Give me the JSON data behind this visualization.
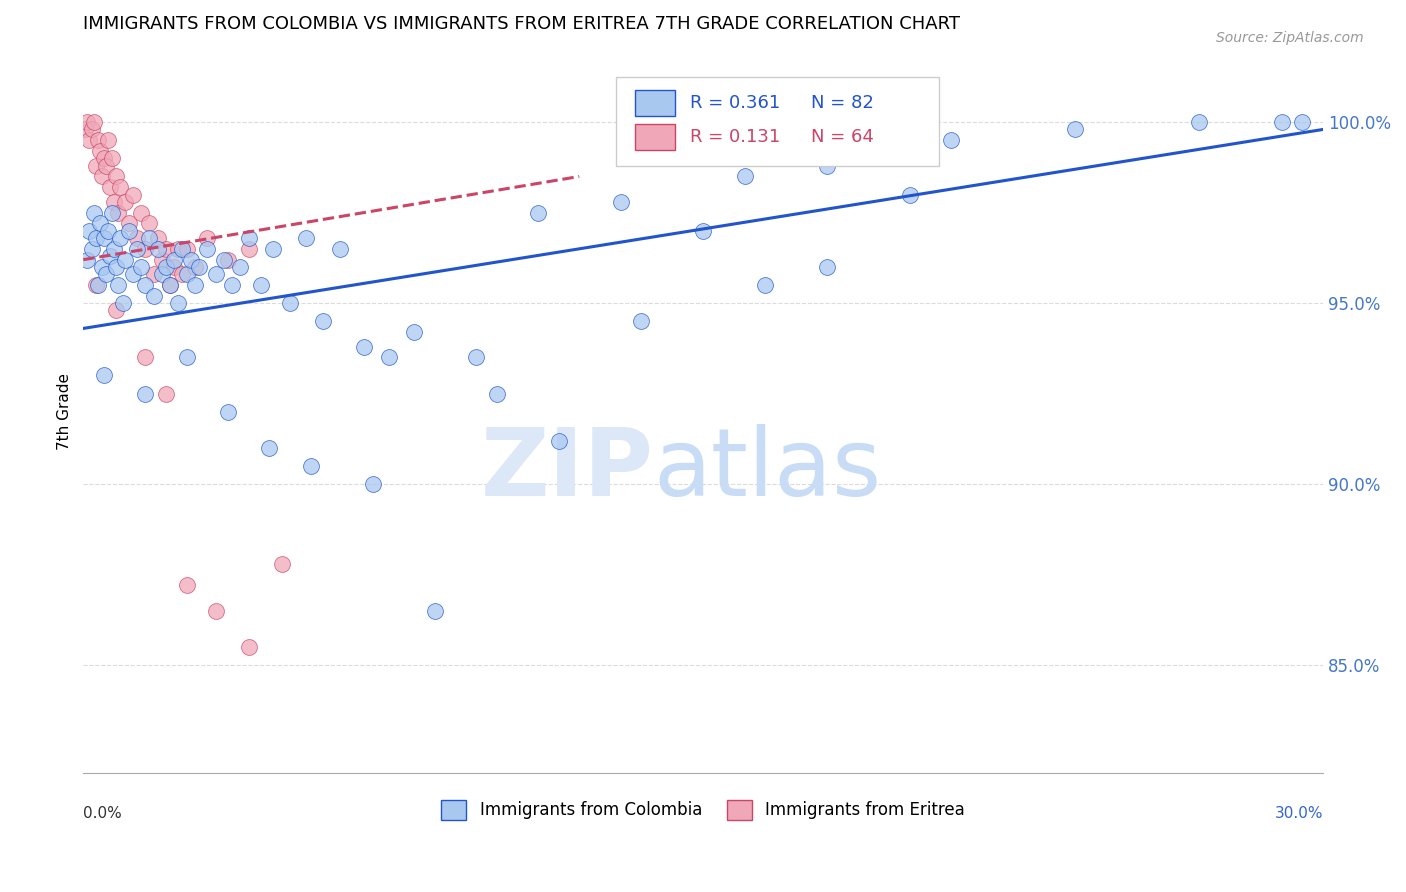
{
  "title": "IMMIGRANTS FROM COLOMBIA VS IMMIGRANTS FROM ERITREA 7TH GRADE CORRELATION CHART",
  "source": "Source: ZipAtlas.com",
  "ylabel": "7th Grade",
  "y_ticks": [
    85.0,
    90.0,
    95.0,
    100.0
  ],
  "y_tick_labels": [
    "85.0%",
    "90.0%",
    "95.0%",
    "100.0%"
  ],
  "xlim": [
    0.0,
    30.0
  ],
  "ylim": [
    82.0,
    102.0
  ],
  "legend_blue_r": "R = 0.361",
  "legend_blue_n": "N = 82",
  "legend_pink_r": "R = 0.131",
  "legend_pink_n": "N = 64",
  "series_colombia_label": "Immigrants from Colombia",
  "series_eritrea_label": "Immigrants from Eritrea",
  "color_blue": "#A8C8F0",
  "color_pink": "#F0A8B8",
  "color_blue_line": "#2255CC",
  "color_pink_line": "#CC4466",
  "colombia_x": [
    0.1,
    0.15,
    0.2,
    0.25,
    0.3,
    0.35,
    0.4,
    0.45,
    0.5,
    0.55,
    0.6,
    0.65,
    0.7,
    0.75,
    0.8,
    0.85,
    0.9,
    0.95,
    1.0,
    1.1,
    1.2,
    1.3,
    1.4,
    1.5,
    1.6,
    1.7,
    1.8,
    1.9,
    2.0,
    2.1,
    2.2,
    2.3,
    2.4,
    2.5,
    2.6,
    2.7,
    2.8,
    3.0,
    3.2,
    3.4,
    3.6,
    3.8,
    4.0,
    4.3,
    4.6,
    5.0,
    5.4,
    5.8,
    6.2,
    6.8,
    7.4,
    8.0,
    9.5,
    11.0,
    13.0,
    16.0,
    18.0,
    21.0,
    24.0,
    27.0,
    29.0,
    29.5
  ],
  "colombia_y": [
    96.2,
    97.0,
    96.5,
    97.5,
    96.8,
    95.5,
    97.2,
    96.0,
    96.8,
    95.8,
    97.0,
    96.3,
    97.5,
    96.5,
    96.0,
    95.5,
    96.8,
    95.0,
    96.2,
    97.0,
    95.8,
    96.5,
    96.0,
    95.5,
    96.8,
    95.2,
    96.5,
    95.8,
    96.0,
    95.5,
    96.2,
    95.0,
    96.5,
    95.8,
    96.2,
    95.5,
    96.0,
    96.5,
    95.8,
    96.2,
    95.5,
    96.0,
    96.8,
    95.5,
    96.5,
    95.0,
    96.8,
    94.5,
    96.5,
    93.8,
    93.5,
    94.2,
    93.5,
    97.5,
    97.8,
    98.5,
    98.8,
    99.5,
    99.8,
    100.0,
    100.0,
    100.0
  ],
  "colombia_outliers_x": [
    0.5,
    1.5,
    2.5,
    3.5,
    4.5,
    5.5,
    7.0,
    8.5,
    10.0,
    11.5,
    13.5,
    15.0,
    16.5,
    18.0,
    20.0
  ],
  "colombia_outliers_y": [
    93.0,
    92.5,
    93.5,
    92.0,
    91.0,
    90.5,
    90.0,
    86.5,
    92.5,
    91.2,
    94.5,
    97.0,
    95.5,
    96.0,
    98.0
  ],
  "eritrea_x": [
    0.05,
    0.1,
    0.15,
    0.2,
    0.25,
    0.3,
    0.35,
    0.4,
    0.45,
    0.5,
    0.55,
    0.6,
    0.65,
    0.7,
    0.75,
    0.8,
    0.85,
    0.9,
    1.0,
    1.1,
    1.2,
    1.3,
    1.4,
    1.5,
    1.6,
    1.7,
    1.8,
    1.9,
    2.0,
    2.1,
    2.2,
    2.3,
    2.4,
    2.5,
    2.7,
    3.0,
    3.5,
    4.0
  ],
  "eritrea_y": [
    99.8,
    100.0,
    99.5,
    99.8,
    100.0,
    98.8,
    99.5,
    99.2,
    98.5,
    99.0,
    98.8,
    99.5,
    98.2,
    99.0,
    97.8,
    98.5,
    97.5,
    98.2,
    97.8,
    97.2,
    98.0,
    96.8,
    97.5,
    96.5,
    97.2,
    95.8,
    96.8,
    96.2,
    96.5,
    95.5,
    96.0,
    96.5,
    95.8,
    96.5,
    96.0,
    96.8,
    96.2,
    96.5
  ],
  "eritrea_outliers_x": [
    0.3,
    0.8,
    1.5,
    2.0,
    2.5,
    3.2,
    4.0,
    4.8
  ],
  "eritrea_outliers_y": [
    95.5,
    94.8,
    93.5,
    92.5,
    87.2,
    86.5,
    85.5,
    87.8
  ],
  "blue_line_x0": 0.0,
  "blue_line_y0": 94.3,
  "blue_line_x1": 30.0,
  "blue_line_y1": 99.8,
  "pink_line_x0": 0.0,
  "pink_line_y0": 96.2,
  "pink_line_x1": 12.0,
  "pink_line_y1": 98.5
}
